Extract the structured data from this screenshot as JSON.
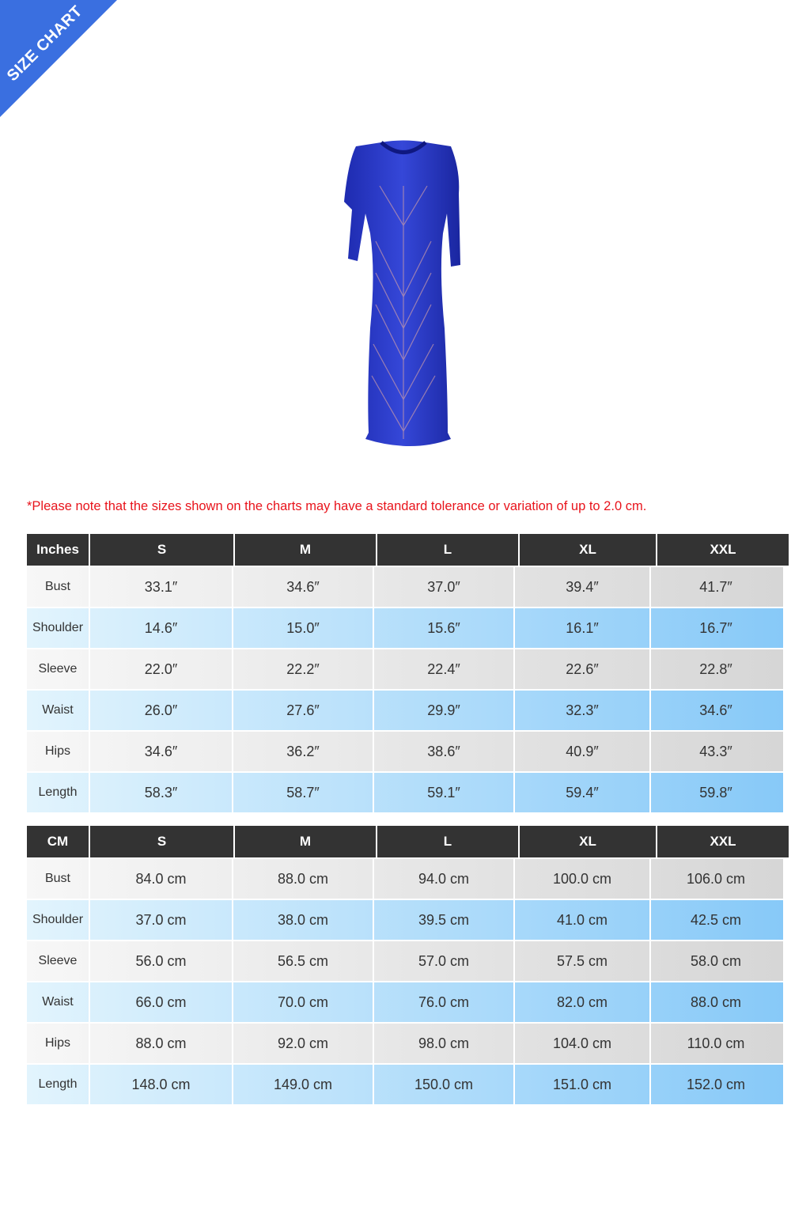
{
  "banner": {
    "label": "SIZE CHART",
    "color": "#3a6fe0"
  },
  "note": "*Please note that the sizes shown on the charts may have a standard tolerance or variation of up to 2.0 cm.",
  "tables": [
    {
      "unit": "Inches",
      "sizes": [
        "S",
        "M",
        "L",
        "XL",
        "XXL"
      ],
      "rows": [
        {
          "label": "Bust",
          "values": [
            "33.1″",
            "34.6″",
            "37.0″",
            "39.4″",
            "41.7″"
          ]
        },
        {
          "label": "Shoulder",
          "values": [
            "14.6″",
            "15.0″",
            "15.6″",
            "16.1″",
            "16.7″"
          ]
        },
        {
          "label": "Sleeve",
          "values": [
            "22.0″",
            "22.2″",
            "22.4″",
            "22.6″",
            "22.8″"
          ]
        },
        {
          "label": "Waist",
          "values": [
            "26.0″",
            "27.6″",
            "29.9″",
            "32.3″",
            "34.6″"
          ]
        },
        {
          "label": "Hips",
          "values": [
            "34.6″",
            "36.2″",
            "38.6″",
            "40.9″",
            "43.3″"
          ]
        },
        {
          "label": "Length",
          "values": [
            "58.3″",
            "58.7″",
            "59.1″",
            "59.4″",
            "59.8″"
          ]
        }
      ]
    },
    {
      "unit": "CM",
      "sizes": [
        "S",
        "M",
        "L",
        "XL",
        "XXL"
      ],
      "rows": [
        {
          "label": "Bust",
          "values": [
            "84.0 cm",
            "88.0 cm",
            "94.0 cm",
            "100.0 cm",
            "106.0 cm"
          ]
        },
        {
          "label": "Shoulder",
          "values": [
            "37.0 cm",
            "38.0 cm",
            "39.5 cm",
            "41.0 cm",
            "42.5 cm"
          ]
        },
        {
          "label": "Sleeve",
          "values": [
            "56.0 cm",
            "56.5 cm",
            "57.0 cm",
            "57.5 cm",
            "58.0 cm"
          ]
        },
        {
          "label": "Waist",
          "values": [
            "66.0 cm",
            "70.0 cm",
            "76.0 cm",
            "82.0 cm",
            "88.0 cm"
          ]
        },
        {
          "label": "Hips",
          "values": [
            "88.0 cm",
            "92.0 cm",
            "98.0 cm",
            "104.0 cm",
            "110.0 cm"
          ]
        },
        {
          "label": "Length",
          "values": [
            "148.0 cm",
            "149.0 cm",
            "150.0 cm",
            "151.0 cm",
            "152.0 cm"
          ]
        }
      ]
    }
  ]
}
